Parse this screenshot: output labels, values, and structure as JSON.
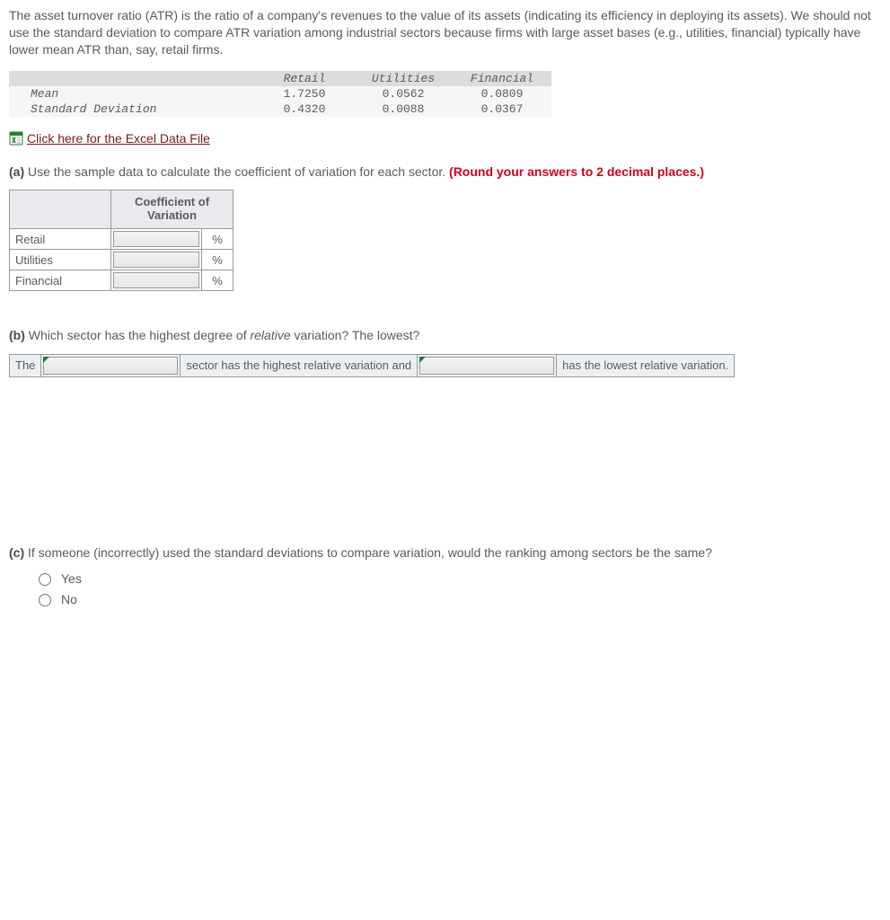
{
  "intro": "The asset turnover ratio (ATR) is the ratio of a company's revenues to the value of its assets (indicating its efficiency in deploying its assets). We should not use the standard deviation to compare ATR variation among industrial sectors because firms with large asset bases (e.g., utilities, financial) typically have lower mean ATR than, say, retail firms.",
  "data_table": {
    "columns": [
      "Retail",
      "Utilities",
      "Financial"
    ],
    "rows": [
      {
        "label": "Mean",
        "values": [
          "1.7250",
          "0.0562",
          "0.0809"
        ]
      },
      {
        "label": "Standard Deviation",
        "values": [
          "0.4320",
          "0.0088",
          "0.0367"
        ]
      }
    ],
    "header_bg": "#dcdcdc",
    "body_bg": "#f6f6f6",
    "font": "Courier New"
  },
  "excel_link": {
    "text": " Click here for the Excel Data File",
    "color": "#7a1a1a"
  },
  "part_a": {
    "label": "(a)",
    "text": " Use the sample data to calculate the coefficient of variation for each sector. ",
    "hint": "(Round your answers to 2 decimal places.)",
    "hint_color": "#d0021b"
  },
  "cv_table": {
    "header": "Coefficient of\nVariation",
    "sectors": [
      "Retail",
      "Utilities",
      "Financial"
    ],
    "suffix": "%",
    "values": [
      "",
      "",
      ""
    ]
  },
  "part_b": {
    "label": "(b)",
    "text_before_italic": " Which sector has the highest degree of ",
    "italic_word": "relative",
    "text_after_italic": " variation? The lowest?"
  },
  "sentence": {
    "s1": "The",
    "s2": "sector has the highest relative variation and",
    "s3": "has the lowest relative variation.",
    "sel1": "",
    "sel2": ""
  },
  "part_c": {
    "label": "(c)",
    "text": " If someone (incorrectly) used the standard deviations to compare variation, would the ranking among sectors be the same?",
    "options": [
      "Yes",
      "No"
    ]
  },
  "colors": {
    "text": "#5a5a5a",
    "table_border": "#9a9a9a",
    "table_head_bg": "#e8eaed",
    "sentence_bg": "#edf0f3",
    "corner_marker": "#1f7a3a"
  }
}
